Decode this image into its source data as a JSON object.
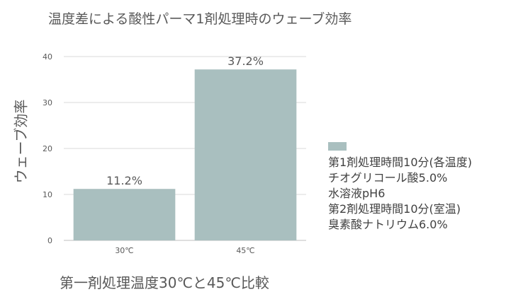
{
  "chart_data": {
    "type": "bar",
    "title": "温度差による酸性パーマ1剤処理時のウェーブ効率",
    "xlabel": "第一剤処理温度30℃と45℃比較",
    "ylabel": "ウェーブ効率",
    "categories": [
      "30℃",
      "45℃"
    ],
    "series": [
      {
        "name": "第1剤処理時間10分(各温度)\nチオグリコール酸5.0%\n水溶液pH6\n第2剤処理時間10分(室温)\n臭素酸ナトリウム6.0%",
        "values": [
          11.2,
          37.2
        ],
        "data_labels": [
          "11.2%",
          "37.2%"
        ],
        "color": "#a9bfbf"
      }
    ],
    "ylim": [
      0,
      40
    ],
    "yticks": [
      0,
      10,
      20,
      30,
      40
    ],
    "grid": true,
    "legend_position": "right",
    "legend_lines": [
      "第1剤処理時間10分(各温度)",
      "チオグリコール酸5.0%",
      "水溶液pH6",
      "第2剤処理時間10分(室温)",
      "臭素酸ナトリウム6.0%"
    ]
  }
}
